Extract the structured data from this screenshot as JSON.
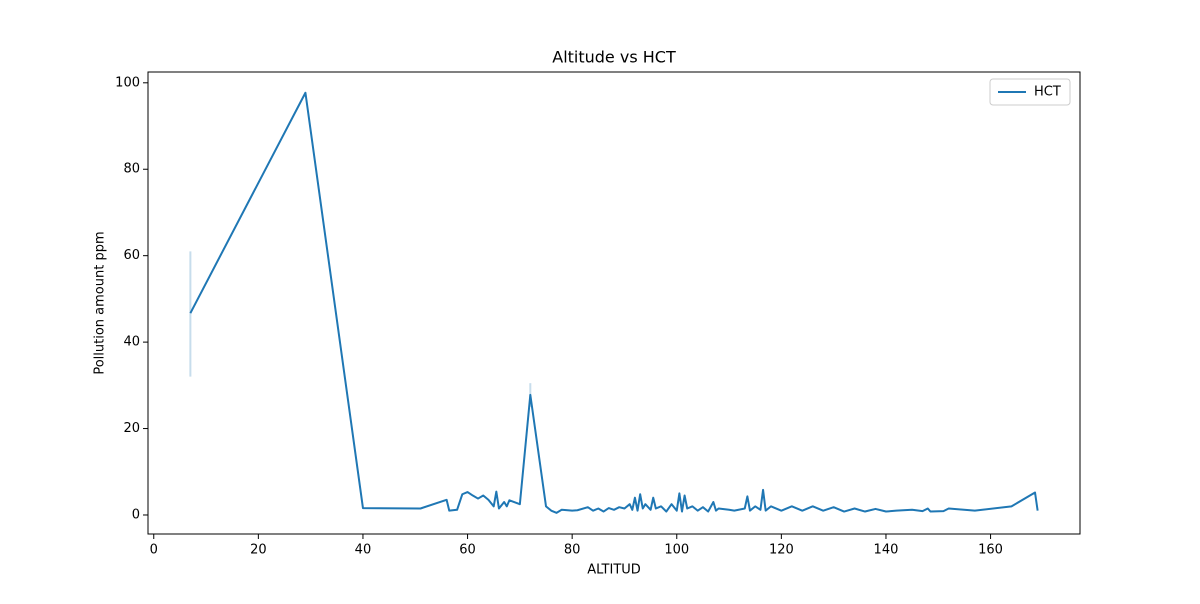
{
  "chart_data": {
    "type": "line",
    "title": "Altitude vs HCT",
    "xlabel": "ALTITUD",
    "ylabel": "Pollution amount ppm",
    "xlim": [
      -1.1,
      177.1
    ],
    "ylim": [
      -4.4,
      102.5
    ],
    "xticks": [
      0,
      20,
      40,
      60,
      80,
      100,
      120,
      140,
      160
    ],
    "yticks": [
      0,
      20,
      40,
      60,
      80,
      100
    ],
    "legend": "upper right",
    "x": [
      7,
      29,
      40,
      51,
      56,
      56.5,
      58,
      59,
      60,
      61,
      62,
      63,
      64,
      65,
      65.5,
      66,
      67,
      67.5,
      68,
      70,
      72,
      75,
      76,
      77,
      78,
      80,
      81,
      83,
      84,
      85,
      86,
      87,
      88,
      89,
      90,
      91,
      91.5,
      92,
      92.5,
      93,
      93.5,
      94,
      95,
      95.5,
      96,
      97,
      98,
      99,
      100,
      100.5,
      101,
      101.5,
      102,
      103,
      104,
      105,
      106,
      107,
      107.5,
      108,
      110,
      111,
      113,
      113.5,
      114,
      115,
      116,
      116.5,
      117,
      118,
      120,
      122,
      124,
      126,
      128,
      130,
      132,
      134,
      136,
      138,
      140,
      142,
      145,
      147,
      148,
      148.5,
      151,
      152,
      157,
      164,
      168.5,
      169
    ],
    "series": [
      {
        "name": "HCT",
        "color": "#1f77b4",
        "values": [
          46.7,
          97.7,
          1.6,
          1.5,
          3.5,
          1.0,
          1.2,
          4.8,
          5.3,
          4.5,
          3.8,
          4.5,
          3.5,
          2.0,
          5.4,
          1.5,
          3.0,
          2.0,
          3.4,
          2.5,
          27.8,
          2.0,
          1.0,
          0.5,
          1.2,
          1.0,
          1.1,
          1.8,
          1.0,
          1.5,
          0.8,
          1.6,
          1.2,
          1.8,
          1.5,
          2.5,
          1.2,
          4.0,
          1.0,
          4.8,
          1.5,
          2.5,
          1.2,
          4.0,
          1.5,
          2.0,
          0.8,
          2.5,
          1.0,
          5.0,
          0.8,
          4.5,
          1.5,
          2.0,
          1.0,
          1.8,
          0.8,
          3.0,
          1.0,
          1.5,
          1.2,
          1.0,
          1.5,
          4.3,
          1.0,
          2.0,
          1.2,
          5.8,
          1.0,
          2.0,
          1.0,
          2.0,
          1.0,
          2.0,
          1.0,
          1.8,
          0.8,
          1.5,
          0.8,
          1.4,
          0.8,
          1.0,
          1.2,
          0.9,
          1.5,
          0.8,
          0.9,
          1.5,
          1.0,
          2.0,
          5.2,
          1.0
        ],
        "ci_x": [
          7,
          72
        ],
        "ci_lower": [
          32,
          25
        ],
        "ci_upper": [
          61,
          30.5
        ]
      }
    ]
  }
}
